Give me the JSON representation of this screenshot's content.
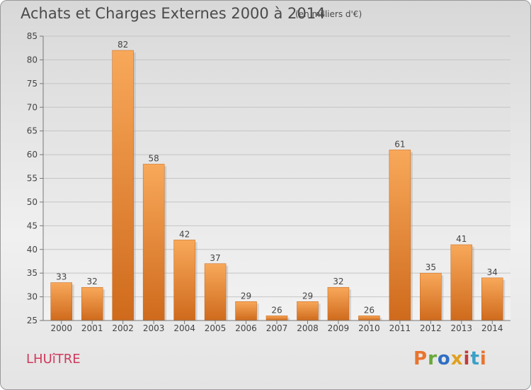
{
  "header": {
    "title": "Achats et Charges Externes 2000 à 2014",
    "subtitle": "(en milliers d'€)"
  },
  "footer": {
    "commune": "LHUîTRE",
    "logo_text": "Proxiti",
    "logo_colors": [
      "#e9742e",
      "#6aa838",
      "#2f6fc3",
      "#e0a020",
      "#c23a3a",
      "#3aa0c8",
      "#e9742e"
    ]
  },
  "chart_data": {
    "type": "bar",
    "title": "Achats et Charges Externes 2000 à 2014",
    "subtitle": "(en milliers d'€)",
    "categories": [
      "2000",
      "2001",
      "2002",
      "2003",
      "2004",
      "2005",
      "2006",
      "2007",
      "2008",
      "2009",
      "2010",
      "2011",
      "2012",
      "2013",
      "2014"
    ],
    "values": [
      33,
      32,
      82,
      58,
      42,
      37,
      29,
      26,
      29,
      32,
      26,
      61,
      35,
      41,
      34
    ],
    "yticks": [
      25,
      30,
      35,
      40,
      45,
      50,
      55,
      60,
      65,
      70,
      75,
      80,
      85
    ],
    "ylim": [
      25,
      85
    ],
    "xlabel": "",
    "ylabel": "",
    "grid": true,
    "bar_color_light": "#f8a85a",
    "bar_color_dark": "#cf6a1c"
  }
}
